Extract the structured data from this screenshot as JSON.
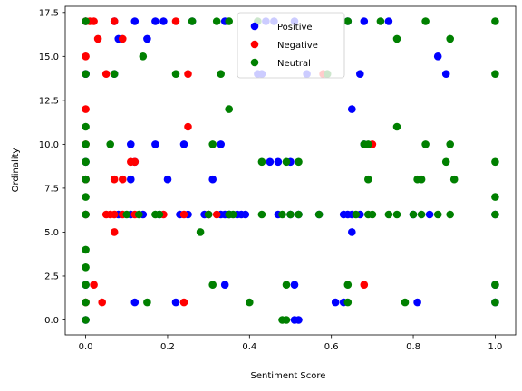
{
  "chart_data": {
    "type": "scatter",
    "xlabel": "Sentiment Score",
    "ylabel": "Ordinality",
    "xlim": [
      -0.05,
      1.05
    ],
    "ylim": [
      -0.85,
      17.85
    ],
    "xticks": [
      0.0,
      0.2,
      0.4,
      0.6,
      0.8,
      1.0
    ],
    "xtick_labels": [
      "0.0",
      "0.2",
      "0.4",
      "0.6",
      "0.8",
      "1.0"
    ],
    "yticks": [
      0.0,
      2.5,
      5.0,
      7.5,
      10.0,
      12.5,
      15.0,
      17.5
    ],
    "ytick_labels": [
      "0.0",
      "2.5",
      "5.0",
      "7.5",
      "10.0",
      "12.5",
      "15.0",
      "17.5"
    ],
    "grid": false,
    "legend": {
      "placement": "top-center"
    },
    "series": [
      {
        "name": "Positive",
        "color": "#0000ff",
        "points": [
          [
            0.0,
            17
          ],
          [
            0.07,
            17
          ],
          [
            0.12,
            17
          ],
          [
            0.17,
            17
          ],
          [
            0.19,
            17
          ],
          [
            0.26,
            17
          ],
          [
            0.34,
            17
          ],
          [
            0.44,
            17
          ],
          [
            0.46,
            17
          ],
          [
            0.51,
            17
          ],
          [
            0.64,
            17
          ],
          [
            0.68,
            17
          ],
          [
            0.74,
            17
          ],
          [
            0.08,
            16
          ],
          [
            0.15,
            16
          ],
          [
            0.0,
            14
          ],
          [
            0.0,
            14
          ],
          [
            0.07,
            14
          ],
          [
            0.42,
            14
          ],
          [
            0.43,
            14
          ],
          [
            0.54,
            14
          ],
          [
            0.67,
            14
          ],
          [
            0.88,
            14
          ],
          [
            0.86,
            15
          ],
          [
            0.65,
            12
          ],
          [
            0.11,
            10
          ],
          [
            0.17,
            10
          ],
          [
            0.24,
            10
          ],
          [
            0.33,
            10
          ],
          [
            0.68,
            10
          ],
          [
            0.12,
            9
          ],
          [
            0.45,
            9
          ],
          [
            0.47,
            9
          ],
          [
            0.5,
            9
          ],
          [
            0.0,
            9
          ],
          [
            0.11,
            8
          ],
          [
            0.2,
            8
          ],
          [
            0.31,
            8
          ],
          [
            0.0,
            8
          ],
          [
            0.0,
            6
          ],
          [
            0.08,
            6
          ],
          [
            0.11,
            6
          ],
          [
            0.14,
            6
          ],
          [
            0.18,
            6
          ],
          [
            0.23,
            6
          ],
          [
            0.25,
            6
          ],
          [
            0.29,
            6
          ],
          [
            0.3,
            6
          ],
          [
            0.33,
            6
          ],
          [
            0.34,
            6
          ],
          [
            0.35,
            6
          ],
          [
            0.37,
            6
          ],
          [
            0.38,
            6
          ],
          [
            0.39,
            6
          ],
          [
            0.47,
            6
          ],
          [
            0.5,
            6
          ],
          [
            0.52,
            6
          ],
          [
            0.57,
            6
          ],
          [
            0.63,
            6
          ],
          [
            0.64,
            6
          ],
          [
            0.65,
            6
          ],
          [
            0.67,
            6
          ],
          [
            0.8,
            6
          ],
          [
            0.84,
            6
          ],
          [
            1.0,
            6
          ],
          [
            0.65,
            5
          ],
          [
            0.34,
            2
          ],
          [
            0.51,
            2
          ],
          [
            0.0,
            2
          ],
          [
            1.0,
            2
          ],
          [
            0.12,
            1
          ],
          [
            0.22,
            1
          ],
          [
            0.61,
            1
          ],
          [
            0.63,
            1
          ],
          [
            0.81,
            1
          ],
          [
            1.0,
            1
          ],
          [
            0.51,
            0
          ],
          [
            0.52,
            0
          ],
          [
            0.0,
            0
          ]
        ]
      },
      {
        "name": "Negative",
        "color": "#ff0000",
        "points": [
          [
            0.0,
            17
          ],
          [
            0.01,
            17
          ],
          [
            0.02,
            17
          ],
          [
            0.07,
            17
          ],
          [
            0.22,
            17
          ],
          [
            0.03,
            16
          ],
          [
            0.09,
            16
          ],
          [
            0.0,
            15
          ],
          [
            0.05,
            14
          ],
          [
            0.25,
            14
          ],
          [
            0.58,
            14
          ],
          [
            0.0,
            12
          ],
          [
            0.25,
            11
          ],
          [
            0.0,
            10
          ],
          [
            0.7,
            10
          ],
          [
            0.11,
            9
          ],
          [
            0.12,
            9
          ],
          [
            0.07,
            8
          ],
          [
            0.09,
            8
          ],
          [
            0.0,
            8
          ],
          [
            0.0,
            6
          ],
          [
            0.05,
            6
          ],
          [
            0.06,
            6
          ],
          [
            0.07,
            6
          ],
          [
            0.09,
            6
          ],
          [
            0.12,
            6
          ],
          [
            0.19,
            6
          ],
          [
            0.24,
            6
          ],
          [
            0.3,
            6
          ],
          [
            0.32,
            6
          ],
          [
            0.07,
            5
          ],
          [
            0.02,
            2
          ],
          [
            0.68,
            2
          ],
          [
            0.04,
            1
          ],
          [
            0.24,
            1
          ],
          [
            0.0,
            1
          ]
        ]
      },
      {
        "name": "Neutral",
        "color": "#008000",
        "points": [
          [
            0.0,
            17
          ],
          [
            0.26,
            17
          ],
          [
            0.32,
            17
          ],
          [
            0.35,
            17
          ],
          [
            0.42,
            17
          ],
          [
            0.64,
            17
          ],
          [
            0.72,
            17
          ],
          [
            0.83,
            17
          ],
          [
            1.0,
            17
          ],
          [
            0.76,
            16
          ],
          [
            0.89,
            16
          ],
          [
            0.14,
            15
          ],
          [
            0.0,
            14
          ],
          [
            0.07,
            14
          ],
          [
            0.22,
            14
          ],
          [
            0.33,
            14
          ],
          [
            0.59,
            14
          ],
          [
            1.0,
            14
          ],
          [
            0.35,
            12
          ],
          [
            0.76,
            11
          ],
          [
            0.0,
            11
          ],
          [
            0.0,
            10
          ],
          [
            0.06,
            10
          ],
          [
            0.31,
            10
          ],
          [
            0.68,
            10
          ],
          [
            0.69,
            10
          ],
          [
            0.83,
            10
          ],
          [
            0.89,
            10
          ],
          [
            0.0,
            9
          ],
          [
            0.43,
            9
          ],
          [
            0.49,
            9
          ],
          [
            0.52,
            9
          ],
          [
            0.88,
            9
          ],
          [
            1.0,
            9
          ],
          [
            0.0,
            8
          ],
          [
            0.69,
            8
          ],
          [
            0.81,
            8
          ],
          [
            0.82,
            8
          ],
          [
            0.9,
            8
          ],
          [
            0.0,
            7
          ],
          [
            1.0,
            7
          ],
          [
            0.0,
            6
          ],
          [
            0.1,
            6
          ],
          [
            0.13,
            6
          ],
          [
            0.17,
            6
          ],
          [
            0.18,
            6
          ],
          [
            0.3,
            6
          ],
          [
            0.35,
            6
          ],
          [
            0.36,
            6
          ],
          [
            0.43,
            6
          ],
          [
            0.48,
            6
          ],
          [
            0.5,
            6
          ],
          [
            0.52,
            6
          ],
          [
            0.57,
            6
          ],
          [
            0.66,
            6
          ],
          [
            0.69,
            6
          ],
          [
            0.7,
            6
          ],
          [
            0.74,
            6
          ],
          [
            0.76,
            6
          ],
          [
            0.8,
            6
          ],
          [
            0.82,
            6
          ],
          [
            0.86,
            6
          ],
          [
            0.89,
            6
          ],
          [
            1.0,
            6
          ],
          [
            0.28,
            5
          ],
          [
            0.0,
            4
          ],
          [
            0.0,
            3
          ],
          [
            0.0,
            2
          ],
          [
            0.31,
            2
          ],
          [
            0.49,
            2
          ],
          [
            0.64,
            2
          ],
          [
            1.0,
            2
          ],
          [
            0.0,
            1
          ],
          [
            0.15,
            1
          ],
          [
            0.4,
            1
          ],
          [
            0.64,
            1
          ],
          [
            0.78,
            1
          ],
          [
            1.0,
            1
          ],
          [
            0.48,
            0
          ],
          [
            0.49,
            0
          ],
          [
            0.0,
            0
          ]
        ]
      }
    ]
  }
}
